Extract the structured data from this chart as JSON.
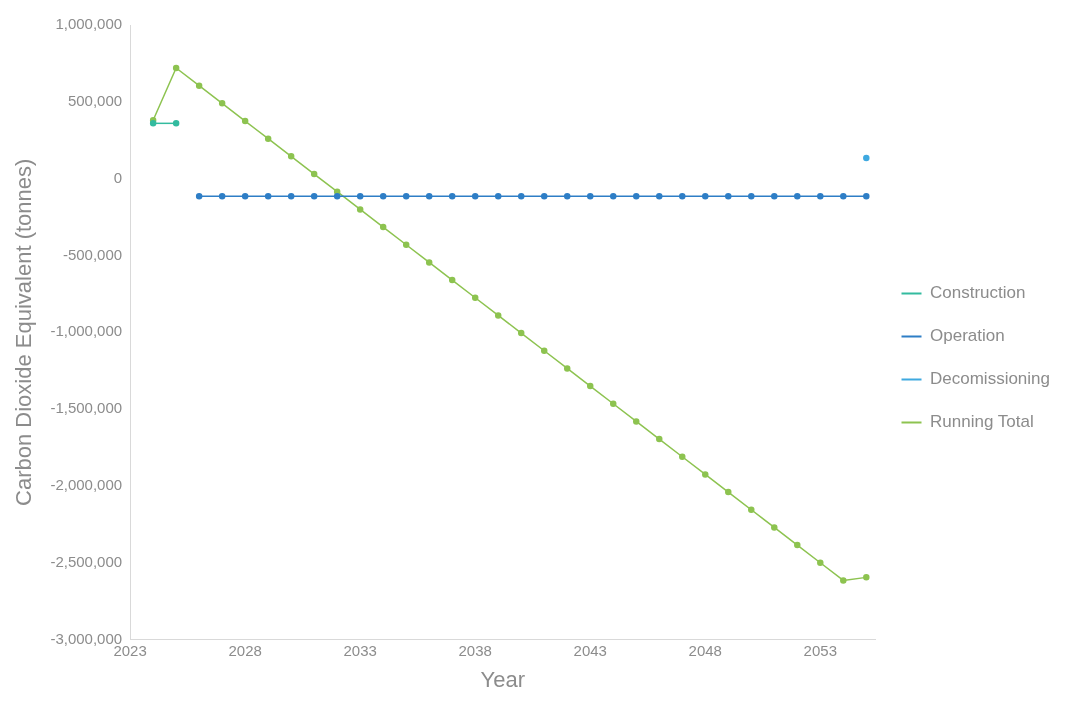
{
  "chart_data": {
    "type": "line",
    "xlabel": "Year",
    "ylabel": "Carbon Dioxide Equivalent (tonnes)",
    "xlim": [
      2023,
      2055.4
    ],
    "xticks": [
      2023,
      2028,
      2033,
      2038,
      2043,
      2048,
      2053
    ],
    "ylim": [
      -3000000,
      1000000
    ],
    "yticks": [
      {
        "value": -3000000,
        "label": "-3,000,000"
      },
      {
        "value": -2500000,
        "label": "-2,500,000"
      },
      {
        "value": -2000000,
        "label": "-2,000,000"
      },
      {
        "value": -1500000,
        "label": "-1,500,000"
      },
      {
        "value": -1000000,
        "label": "-1,000,000"
      },
      {
        "value": -500000,
        "label": "-500,000"
      },
      0,
      {
        "value": 500000,
        "label": "500,000"
      },
      {
        "value": 1000000,
        "label": "1,000,000"
      }
    ],
    "grid": false,
    "legend": "right",
    "marker": "circle",
    "line_style": "solid",
    "series": [
      {
        "name": "Construction",
        "color": "#33bb9f",
        "x": [
          2024,
          2025
        ],
        "values": [
          360000,
          360000
        ]
      },
      {
        "name": "Operation",
        "color": "#2e7ec6",
        "x": [
          2026,
          2027,
          2028,
          2029,
          2030,
          2031,
          2032,
          2033,
          2034,
          2035,
          2036,
          2037,
          2038,
          2039,
          2040,
          2041,
          2042,
          2043,
          2044,
          2045,
          2046,
          2047,
          2048,
          2049,
          2050,
          2051,
          2052,
          2053,
          2054,
          2055
        ],
        "values": [
          -115000,
          -115000,
          -115000,
          -115000,
          -115000,
          -115000,
          -115000,
          -115000,
          -115000,
          -115000,
          -115000,
          -115000,
          -115000,
          -115000,
          -115000,
          -115000,
          -115000,
          -115000,
          -115000,
          -115000,
          -115000,
          -115000,
          -115000,
          -115000,
          -115000,
          -115000,
          -115000,
          -115000,
          -115000,
          -115000
        ]
      },
      {
        "name": "Decomissioning",
        "color": "#3fa9e0",
        "x": [
          2055
        ],
        "values": [
          135000
        ]
      },
      {
        "name": "Running Total",
        "color": "#8dc350",
        "x": [
          2024,
          2025,
          2026,
          2027,
          2028,
          2029,
          2030,
          2031,
          2032,
          2033,
          2034,
          2035,
          2036,
          2037,
          2038,
          2039,
          2040,
          2041,
          2042,
          2043,
          2044,
          2045,
          2046,
          2047,
          2048,
          2049,
          2050,
          2051,
          2052,
          2053,
          2054,
          2055
        ],
        "values": [
          380000,
          720000,
          605000,
          490000,
          375000,
          260000,
          145000,
          30000,
          -85000,
          -200000,
          -315000,
          -430000,
          -545000,
          -660000,
          -775000,
          -890000,
          -1005000,
          -1120000,
          -1235000,
          -1350000,
          -1465000,
          -1580000,
          -1695000,
          -1810000,
          -1925000,
          -2040000,
          -2155000,
          -2270000,
          -2385000,
          -2500000,
          -2615000,
          -2595000
        ]
      }
    ]
  }
}
